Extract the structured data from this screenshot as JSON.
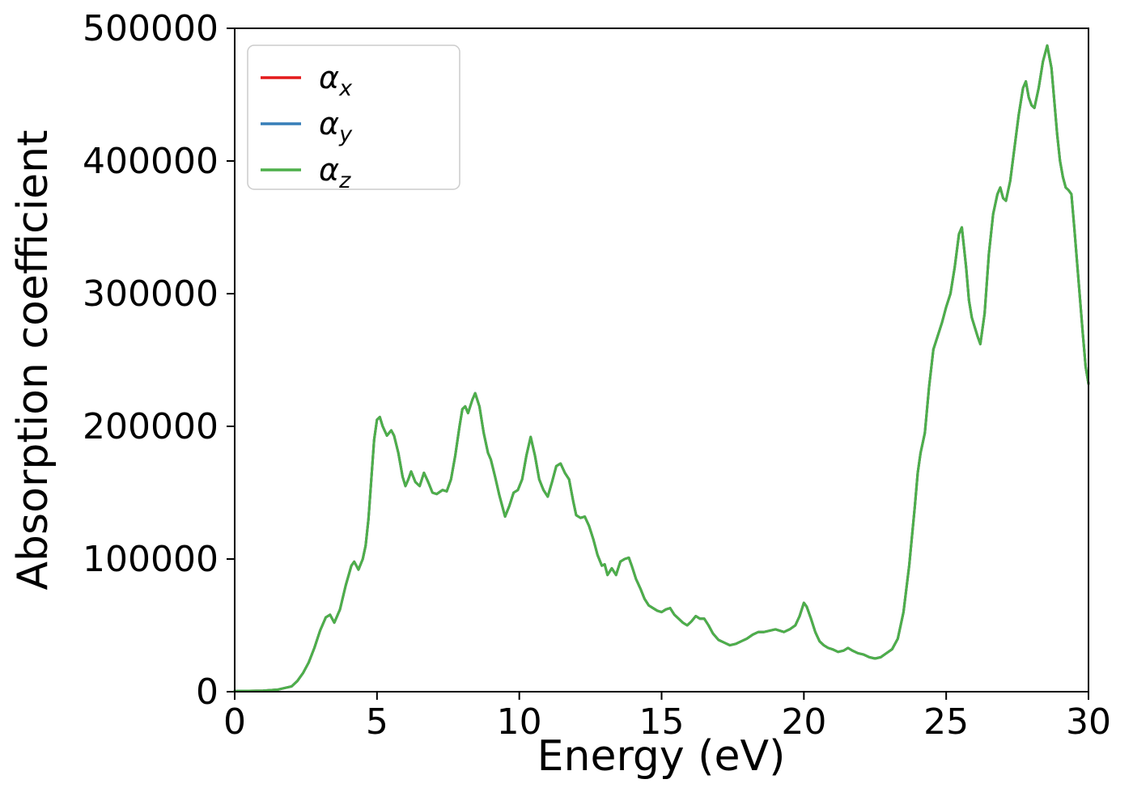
{
  "chart_data": {
    "type": "line",
    "title": "",
    "xlabel": "Energy (eV)",
    "ylabel": "Absorption coefficient",
    "xlim": [
      0,
      30
    ],
    "ylim": [
      0,
      500000
    ],
    "xticks": [
      0,
      5,
      10,
      15,
      20,
      25,
      30
    ],
    "yticks": [
      0,
      100000,
      200000,
      300000,
      400000,
      500000
    ],
    "grid": false,
    "legend": {
      "position": "upper-left",
      "entries": [
        {
          "label_base": "α",
          "label_sub": "x",
          "color": "#e41a1c"
        },
        {
          "label_base": "α",
          "label_sub": "y",
          "color": "#377eb8"
        },
        {
          "label_base": "α",
          "label_sub": "z",
          "color": "#4daf4a"
        }
      ]
    },
    "series": [
      {
        "name": "alpha_x",
        "color": "#e41a1c",
        "values_source": "points"
      },
      {
        "name": "alpha_y",
        "color": "#377eb8",
        "values_source": "points"
      },
      {
        "name": "alpha_z",
        "color": "#4daf4a",
        "values_source": "points"
      }
    ],
    "overlapping_series": true,
    "points": [
      [
        0,
        500
      ],
      [
        0.5,
        600
      ],
      [
        1,
        800
      ],
      [
        1.5,
        1500
      ],
      [
        2,
        4000
      ],
      [
        2.2,
        8000
      ],
      [
        2.4,
        14000
      ],
      [
        2.6,
        22000
      ],
      [
        2.8,
        33000
      ],
      [
        3,
        46000
      ],
      [
        3.2,
        56000
      ],
      [
        3.35,
        58000
      ],
      [
        3.5,
        52000
      ],
      [
        3.7,
        62000
      ],
      [
        3.9,
        80000
      ],
      [
        4.1,
        95000
      ],
      [
        4.2,
        98000
      ],
      [
        4.35,
        92000
      ],
      [
        4.5,
        100000
      ],
      [
        4.6,
        110000
      ],
      [
        4.7,
        130000
      ],
      [
        4.8,
        160000
      ],
      [
        4.9,
        190000
      ],
      [
        5,
        205000
      ],
      [
        5.1,
        207000
      ],
      [
        5.2,
        200000
      ],
      [
        5.35,
        193000
      ],
      [
        5.5,
        197000
      ],
      [
        5.6,
        193000
      ],
      [
        5.75,
        180000
      ],
      [
        5.9,
        162000
      ],
      [
        6,
        155000
      ],
      [
        6.1,
        160000
      ],
      [
        6.2,
        166000
      ],
      [
        6.35,
        158000
      ],
      [
        6.5,
        155000
      ],
      [
        6.65,
        165000
      ],
      [
        6.8,
        158000
      ],
      [
        6.95,
        150000
      ],
      [
        7.1,
        149000
      ],
      [
        7.3,
        152000
      ],
      [
        7.45,
        151000
      ],
      [
        7.6,
        160000
      ],
      [
        7.75,
        178000
      ],
      [
        7.9,
        200000
      ],
      [
        8,
        213000
      ],
      [
        8.1,
        215000
      ],
      [
        8.2,
        210000
      ],
      [
        8.35,
        220000
      ],
      [
        8.45,
        225000
      ],
      [
        8.6,
        215000
      ],
      [
        8.75,
        195000
      ],
      [
        8.9,
        180000
      ],
      [
        9,
        175000
      ],
      [
        9.15,
        162000
      ],
      [
        9.3,
        148000
      ],
      [
        9.5,
        132000
      ],
      [
        9.65,
        140000
      ],
      [
        9.8,
        150000
      ],
      [
        9.95,
        152000
      ],
      [
        10.1,
        160000
      ],
      [
        10.25,
        178000
      ],
      [
        10.4,
        192000
      ],
      [
        10.55,
        178000
      ],
      [
        10.7,
        160000
      ],
      [
        10.85,
        152000
      ],
      [
        11,
        147000
      ],
      [
        11.15,
        158000
      ],
      [
        11.3,
        170000
      ],
      [
        11.45,
        172000
      ],
      [
        11.6,
        165000
      ],
      [
        11.75,
        160000
      ],
      [
        11.9,
        143000
      ],
      [
        12,
        133000
      ],
      [
        12.15,
        131000
      ],
      [
        12.3,
        132000
      ],
      [
        12.45,
        125000
      ],
      [
        12.6,
        115000
      ],
      [
        12.75,
        103000
      ],
      [
        12.9,
        95000
      ],
      [
        13,
        96000
      ],
      [
        13.1,
        88000
      ],
      [
        13.25,
        93000
      ],
      [
        13.4,
        88000
      ],
      [
        13.55,
        98000
      ],
      [
        13.7,
        100000
      ],
      [
        13.85,
        101000
      ],
      [
        13.95,
        95000
      ],
      [
        14.1,
        85000
      ],
      [
        14.25,
        78000
      ],
      [
        14.4,
        70000
      ],
      [
        14.55,
        65000
      ],
      [
        14.7,
        63000
      ],
      [
        14.85,
        61000
      ],
      [
        15,
        60000
      ],
      [
        15.15,
        62000
      ],
      [
        15.3,
        63000
      ],
      [
        15.45,
        58000
      ],
      [
        15.6,
        55000
      ],
      [
        15.75,
        52000
      ],
      [
        15.9,
        50000
      ],
      [
        16.05,
        53000
      ],
      [
        16.2,
        57000
      ],
      [
        16.35,
        55000
      ],
      [
        16.5,
        55000
      ],
      [
        16.65,
        50000
      ],
      [
        16.8,
        44000
      ],
      [
        17,
        39000
      ],
      [
        17.2,
        37000
      ],
      [
        17.4,
        35000
      ],
      [
        17.6,
        36000
      ],
      [
        17.8,
        38000
      ],
      [
        18,
        40000
      ],
      [
        18.2,
        43000
      ],
      [
        18.4,
        45000
      ],
      [
        18.6,
        45000
      ],
      [
        18.8,
        46000
      ],
      [
        19,
        47000
      ],
      [
        19.15,
        46000
      ],
      [
        19.3,
        45000
      ],
      [
        19.5,
        47000
      ],
      [
        19.7,
        50000
      ],
      [
        19.85,
        57000
      ],
      [
        20,
        67000
      ],
      [
        20.1,
        64000
      ],
      [
        20.25,
        55000
      ],
      [
        20.4,
        45000
      ],
      [
        20.55,
        38000
      ],
      [
        20.7,
        35000
      ],
      [
        20.85,
        33000
      ],
      [
        21,
        32000
      ],
      [
        21.2,
        30000
      ],
      [
        21.4,
        31000
      ],
      [
        21.55,
        33000
      ],
      [
        21.7,
        31000
      ],
      [
        21.9,
        29000
      ],
      [
        22.1,
        28000
      ],
      [
        22.3,
        26000
      ],
      [
        22.5,
        25000
      ],
      [
        22.7,
        26000
      ],
      [
        22.9,
        29000
      ],
      [
        23.1,
        32000
      ],
      [
        23.3,
        40000
      ],
      [
        23.5,
        60000
      ],
      [
        23.7,
        95000
      ],
      [
        23.9,
        140000
      ],
      [
        24,
        165000
      ],
      [
        24.1,
        180000
      ],
      [
        24.25,
        195000
      ],
      [
        24.4,
        230000
      ],
      [
        24.55,
        258000
      ],
      [
        24.7,
        268000
      ],
      [
        24.85,
        278000
      ],
      [
        25,
        290000
      ],
      [
        25.15,
        300000
      ],
      [
        25.3,
        320000
      ],
      [
        25.45,
        345000
      ],
      [
        25.55,
        350000
      ],
      [
        25.7,
        320000
      ],
      [
        25.8,
        295000
      ],
      [
        25.9,
        282000
      ],
      [
        26,
        275000
      ],
      [
        26.1,
        268000
      ],
      [
        26.2,
        262000
      ],
      [
        26.35,
        285000
      ],
      [
        26.5,
        330000
      ],
      [
        26.65,
        360000
      ],
      [
        26.8,
        375000
      ],
      [
        26.9,
        380000
      ],
      [
        27,
        372000
      ],
      [
        27.1,
        370000
      ],
      [
        27.25,
        385000
      ],
      [
        27.4,
        410000
      ],
      [
        27.55,
        435000
      ],
      [
        27.7,
        455000
      ],
      [
        27.8,
        460000
      ],
      [
        27.9,
        448000
      ],
      [
        28,
        442000
      ],
      [
        28.1,
        440000
      ],
      [
        28.25,
        455000
      ],
      [
        28.4,
        475000
      ],
      [
        28.55,
        487000
      ],
      [
        28.7,
        470000
      ],
      [
        28.8,
        445000
      ],
      [
        28.9,
        420000
      ],
      [
        29,
        400000
      ],
      [
        29.1,
        388000
      ],
      [
        29.2,
        380000
      ],
      [
        29.3,
        378000
      ],
      [
        29.4,
        375000
      ],
      [
        29.5,
        350000
      ],
      [
        29.65,
        310000
      ],
      [
        29.8,
        270000
      ],
      [
        29.9,
        245000
      ],
      [
        30,
        232000
      ]
    ]
  }
}
